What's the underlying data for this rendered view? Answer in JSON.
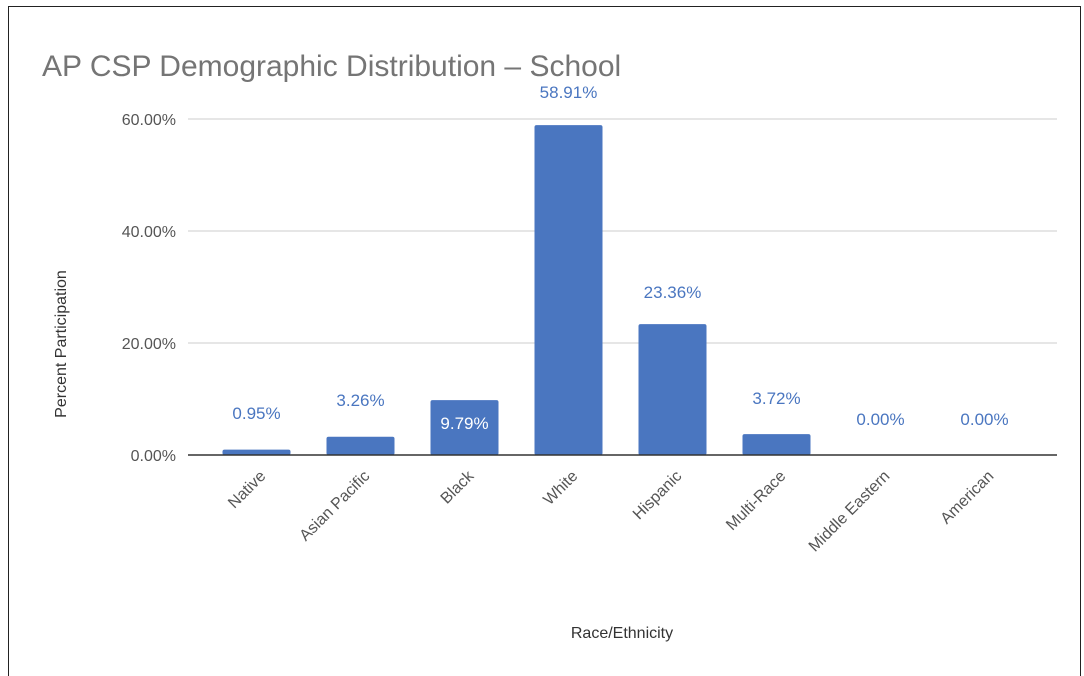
{
  "chart_data": {
    "type": "bar",
    "title": "AP CSP Demographic Distribution – School",
    "xlabel": "Race/Ethnicity",
    "ylabel": "Percent Participation",
    "categories": [
      "Native",
      "Asian Pacific",
      "Black",
      "White",
      "Hispanic",
      "Multi-Race",
      "Middle Eastern",
      "American"
    ],
    "values": [
      0.95,
      3.26,
      9.79,
      58.91,
      23.36,
      3.72,
      0.0,
      0.0
    ],
    "data_labels": [
      "0.95%",
      "3.26%",
      "9.79%",
      "58.91%",
      "23.36%",
      "3.72%",
      "0.00%",
      "0.00%"
    ],
    "yticks": [
      0,
      20,
      40,
      60
    ],
    "ytick_labels": [
      "0.00%",
      "20.00%",
      "40.00%",
      "60.00%"
    ],
    "ylim": [
      0,
      60
    ],
    "grid": true,
    "legend": "none",
    "colors": {
      "bar": "#4a76c0",
      "label": "#4a76c0",
      "label_inside": "#ffffff",
      "title": "#757575",
      "axis": "#333333",
      "grid": "#cccccc",
      "tick_text": "#555555"
    }
  }
}
